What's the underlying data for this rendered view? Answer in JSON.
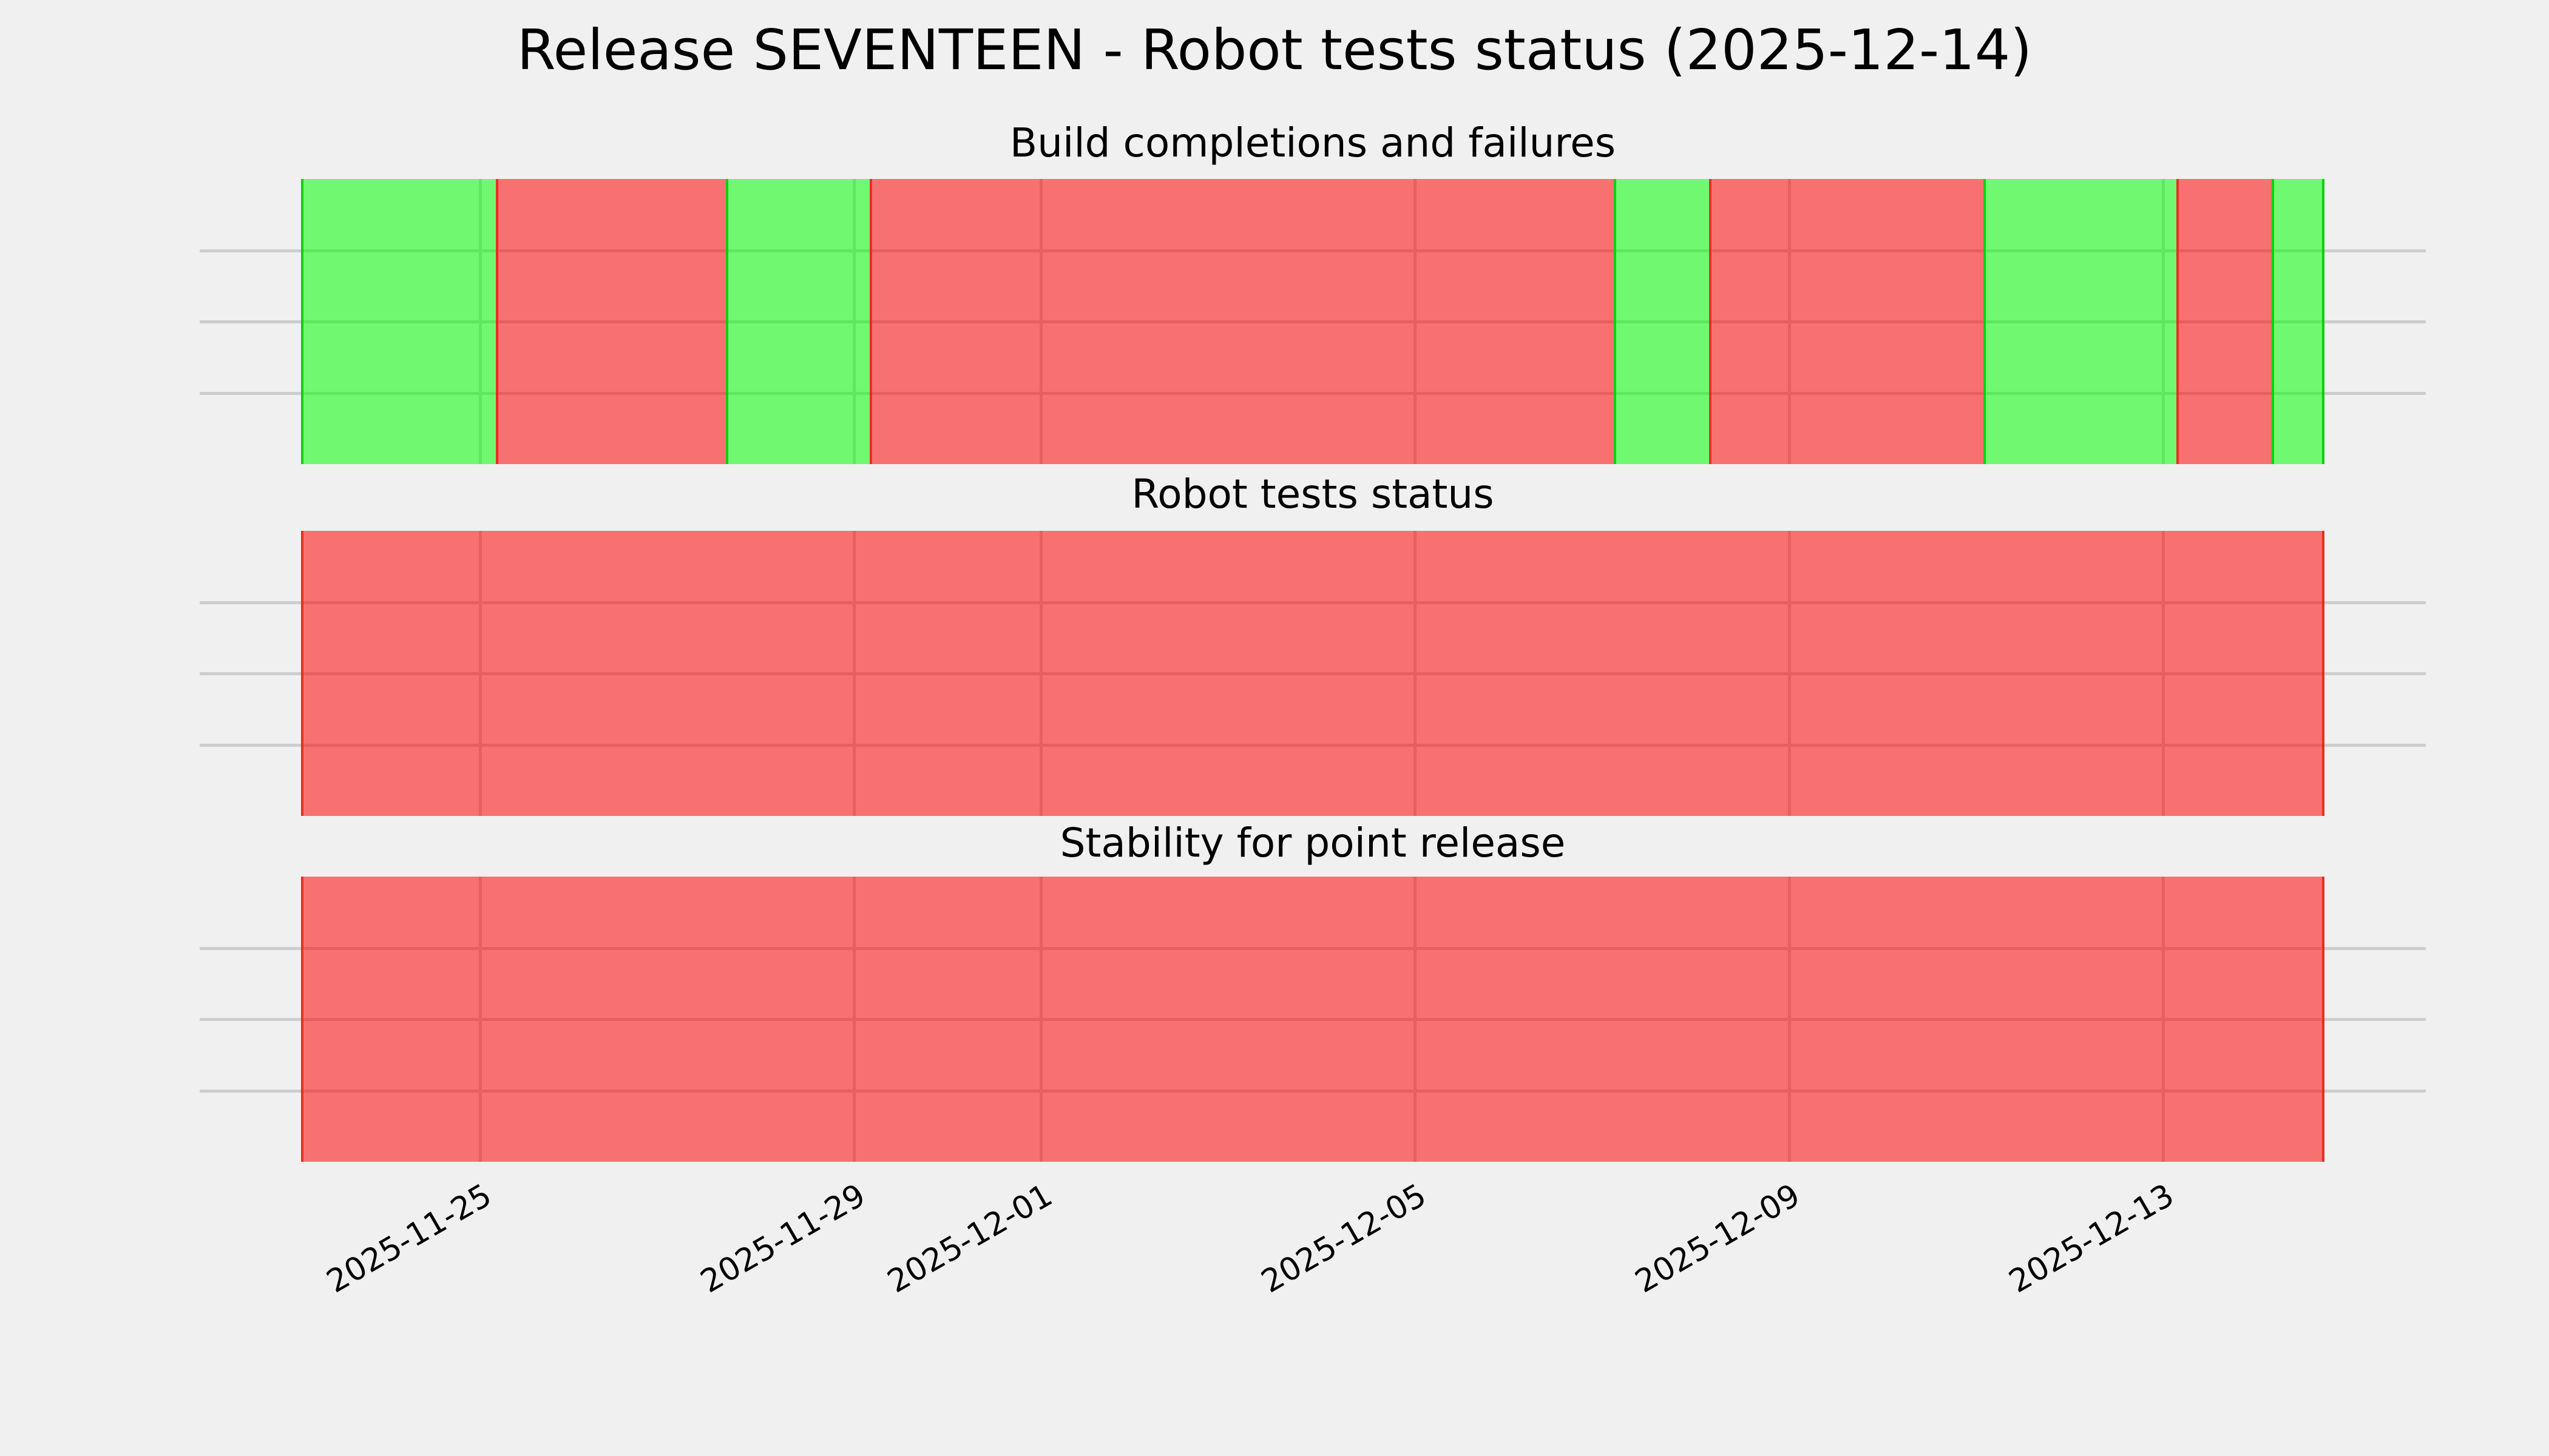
{
  "figure": {
    "title": "Release SEVENTEEN - Robot tests status (2025-12-14)",
    "background": "#F0F0F0"
  },
  "colors": {
    "pass_fill": "rgba(0,255,0,0.53)",
    "fail_fill": "rgba(255,0,0,0.53)",
    "pass_edge": "rgba(0,200,0,0.85)",
    "fail_edge": "rgba(226,36,22,0.85)",
    "grid": "#CDCDCD",
    "text": "#000000"
  },
  "x_axis": {
    "start": "2025-11-23T02:00:00",
    "end": "2025-12-14T17:30:00",
    "ticks": [
      {
        "date": "2025-11-25T00:00:00",
        "label": "2025-11-25"
      },
      {
        "date": "2025-11-29T00:00:00",
        "label": "2025-11-29"
      },
      {
        "date": "2025-12-01T00:00:00",
        "label": "2025-12-01"
      },
      {
        "date": "2025-12-05T00:00:00",
        "label": "2025-12-05"
      },
      {
        "date": "2025-12-09T00:00:00",
        "label": "2025-12-09"
      },
      {
        "date": "2025-12-13T00:00:00",
        "label": "2025-12-13"
      }
    ]
  },
  "chart_data": [
    {
      "type": "timeline",
      "title": "Build completions and failures",
      "status_values": {
        "pass": "green",
        "fail": "red"
      },
      "segments": [
        {
          "status": "pass",
          "start": "2025-11-23T02:00:00",
          "end": "2025-11-25T04:00:00"
        },
        {
          "status": "fail",
          "start": "2025-11-25T04:00:00",
          "end": "2025-11-27T15:00:00"
        },
        {
          "status": "pass",
          "start": "2025-11-27T15:00:00",
          "end": "2025-11-29T04:00:00"
        },
        {
          "status": "fail",
          "start": "2025-11-29T04:00:00",
          "end": "2025-12-07T03:00:00"
        },
        {
          "status": "pass",
          "start": "2025-12-07T03:00:00",
          "end": "2025-12-08T03:30:00"
        },
        {
          "status": "fail",
          "start": "2025-12-08T03:30:00",
          "end": "2025-12-11T02:00:00"
        },
        {
          "status": "pass",
          "start": "2025-12-11T02:00:00",
          "end": "2025-12-13T03:30:00"
        },
        {
          "status": "fail",
          "start": "2025-12-13T03:30:00",
          "end": "2025-12-14T04:00:00"
        },
        {
          "status": "pass",
          "start": "2025-12-14T04:00:00",
          "end": "2025-12-14T17:30:00"
        }
      ]
    },
    {
      "type": "timeline",
      "title": "Robot tests status",
      "status_values": {
        "pass": "green",
        "fail": "red"
      },
      "segments": [
        {
          "status": "fail",
          "start": "2025-11-23T02:00:00",
          "end": "2025-12-14T17:30:00"
        }
      ]
    },
    {
      "type": "timeline",
      "title": "Stability for point release",
      "status_values": {
        "pass": "green",
        "fail": "red"
      },
      "segments": [
        {
          "status": "fail",
          "start": "2025-11-23T02:00:00",
          "end": "2025-12-14T17:30:00"
        }
      ]
    }
  ]
}
